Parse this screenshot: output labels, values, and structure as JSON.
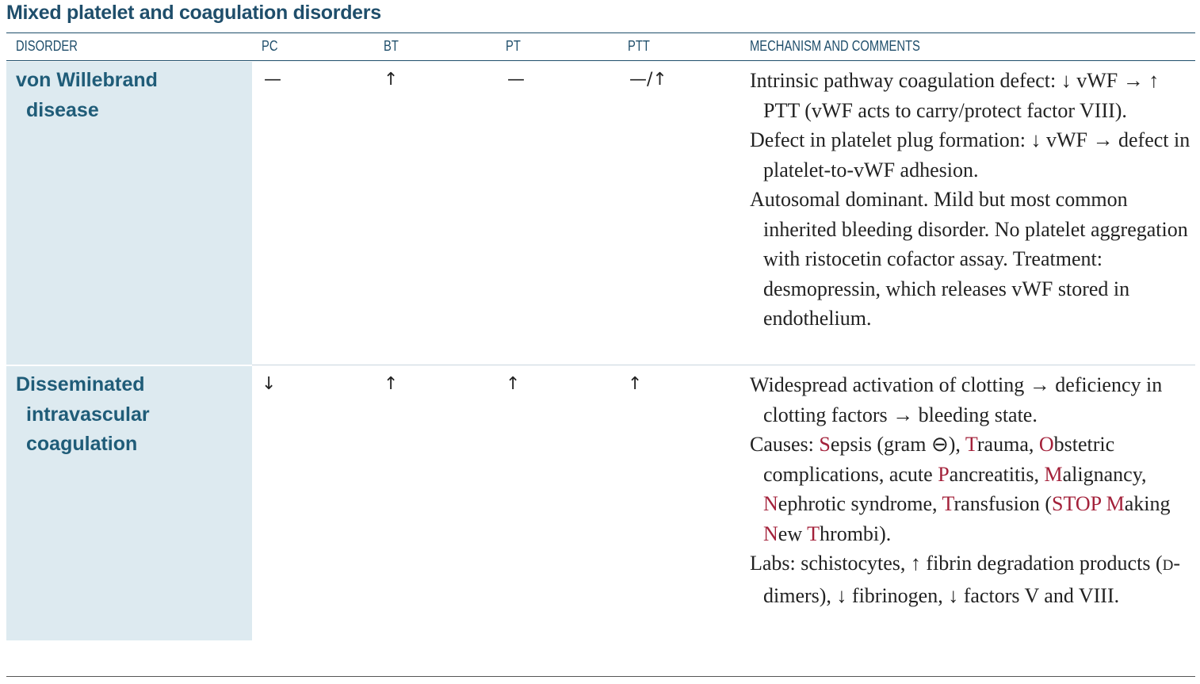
{
  "title": "Mixed platelet and coagulation disorders",
  "columns": {
    "disorder": "DISORDER",
    "pc": "PC",
    "bt": "BT",
    "pt": "PT",
    "ptt": "PTT",
    "mechanism": "MECHANISM AND COMMENTS"
  },
  "rows": [
    {
      "disorder_lines": [
        "von Willebrand",
        "disease"
      ],
      "pc": "—",
      "bt": "↑",
      "pt": "—",
      "ptt": "—/↑",
      "mechanism": [
        "Intrinsic pathway coagulation defect: ↓ vWF → ↑ PTT (vWF acts to carry/protect factor VIII).",
        "Defect in platelet plug formation: ↓ vWF → defect in platelet-to-vWF adhesion.",
        "Autosomal dominant. Mild but most common inherited bleeding disorder. No platelet aggregation with ristocetin cofactor assay. Treatment: desmopressin, which releases vWF stored in endothelium."
      ]
    },
    {
      "disorder_lines": [
        "Disseminated",
        "intravascular",
        "coagulation"
      ],
      "pc": "↓",
      "bt": "↑",
      "pt": "↑",
      "ptt": "↑",
      "mechanism": {
        "p1": "Widespread activation of clotting → deficiency in clotting factors → bleeding state.",
        "p2_segments": [
          {
            "t": "Causes: ",
            "r": false
          },
          {
            "t": "S",
            "r": true
          },
          {
            "t": "epsis (gram ⊖), ",
            "r": false
          },
          {
            "t": "T",
            "r": true
          },
          {
            "t": "rauma, ",
            "r": false
          },
          {
            "t": "O",
            "r": true
          },
          {
            "t": "bstetric complications, acute ",
            "r": false
          },
          {
            "t": "P",
            "r": true
          },
          {
            "t": "ancreatitis, ",
            "r": false
          },
          {
            "t": "M",
            "r": true
          },
          {
            "t": "alignancy, ",
            "r": false
          },
          {
            "t": "N",
            "r": true
          },
          {
            "t": "ephrotic syndrome, ",
            "r": false
          },
          {
            "t": "T",
            "r": true
          },
          {
            "t": "ransfusion (",
            "r": false
          },
          {
            "t": "STOP M",
            "r": true
          },
          {
            "t": "aking ",
            "r": false
          },
          {
            "t": "N",
            "r": true
          },
          {
            "t": "ew ",
            "r": false
          },
          {
            "t": "T",
            "r": true
          },
          {
            "t": "hrombi).",
            "r": false
          }
        ],
        "p3_a": "Labs: schistocytes, ↑ fibrin degradation products (",
        "p3_sc": "d",
        "p3_b": "-dimers), ↓ fibrinogen, ↓ factors V and VIII."
      }
    }
  ]
}
